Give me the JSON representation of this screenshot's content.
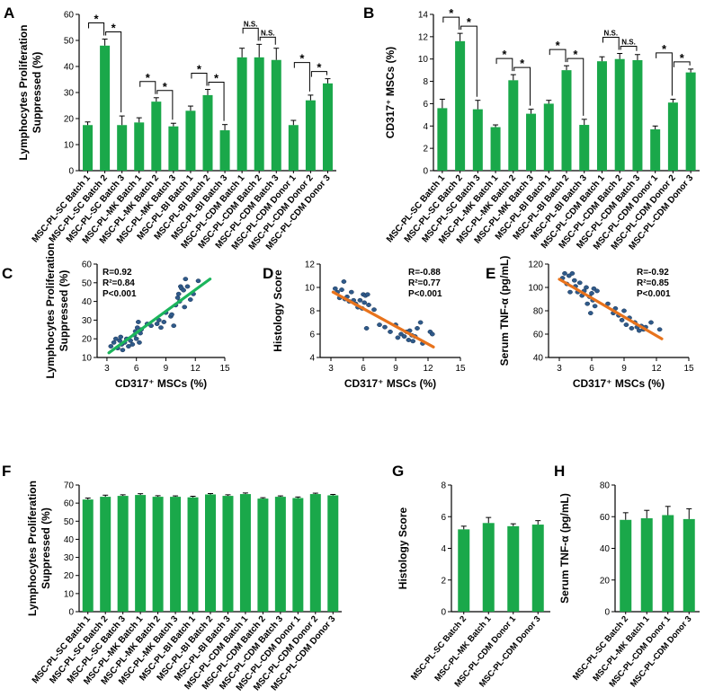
{
  "colors": {
    "bar": "#1aa84a",
    "line_c": "#1bb55c",
    "line_de": "#e8731c",
    "dot": "#2f5a8a",
    "axis": "#000000"
  },
  "chart_data": [
    {
      "panel": "A",
      "type": "bar",
      "ylabel": "Lymphocytes Proliferation Suppressed (%)",
      "ylabel_lines": [
        "Lymphocytes Proliferation",
        "Suppressed (%)"
      ],
      "ylim": [
        0,
        60
      ],
      "yticks": [
        0,
        10,
        20,
        30,
        40,
        50,
        60
      ],
      "categories": [
        "MSC-PL-SC Batch 1",
        "MSC-PL-SC Batch 2",
        "MSC-PL-SC Batch 3",
        "MSC-PL-MK Batch 1",
        "MSC-PL-MK Batch 2",
        "MSC-PL-MK Batch 3",
        "MSC-PL-BI Batch 1",
        "MSC-PL-BI Batch 2",
        "MSC-PL-BI Batch 3",
        "MSC-PL-CDM Batch 1",
        "MSC-PL-CDM Batch 2",
        "MSC-PL-CDM Batch 3",
        "MSC-PL-CDM Donor 1",
        "MSC-PL-CDM Donor 2",
        "MSC-PL-CDM Donor 3"
      ],
      "values": [
        17.5,
        48,
        17.5,
        18.5,
        26.5,
        17,
        23,
        29,
        15.5,
        43.5,
        43.5,
        42.5,
        17.5,
        27,
        33.5
      ],
      "errors": [
        1.2,
        2.5,
        3.5,
        1.8,
        1.5,
        1.2,
        1.8,
        2.2,
        2.2,
        3.5,
        5,
        4.5,
        1.8,
        2,
        1.8
      ],
      "comparisons": [
        {
          "from": 0,
          "to": 1,
          "label": "*"
        },
        {
          "from": 1,
          "to": 2,
          "label": "*"
        },
        {
          "from": 3,
          "to": 4,
          "label": "*"
        },
        {
          "from": 4,
          "to": 5,
          "label": "*"
        },
        {
          "from": 6,
          "to": 7,
          "label": "*"
        },
        {
          "from": 7,
          "to": 8,
          "label": "*"
        },
        {
          "from": 9,
          "to": 10,
          "label": "N.S."
        },
        {
          "from": 10,
          "to": 11,
          "label": "N.S."
        },
        {
          "from": 12,
          "to": 13,
          "label": "*"
        },
        {
          "from": 13,
          "to": 14,
          "label": "*"
        }
      ]
    },
    {
      "panel": "B",
      "type": "bar",
      "ylabel": "CD317⁺ MSCs (%)",
      "ylabel_lines": [
        "CD317⁺ MSCs (%)"
      ],
      "ylim": [
        0,
        14
      ],
      "yticks": [
        0,
        2,
        4,
        6,
        8,
        10,
        12,
        14
      ],
      "categories": [
        "MSC-PL-SC Batch 1",
        "MSC-PL-SC Batch 2",
        "MSC-PL-SC Batch 3",
        "MSC-PL-MK Batch 1",
        "MSC-PL-MK Batch 2",
        "MSC-PL-MK Batch 3",
        "MSC-PL-BI Batch 1",
        "MSC-PL-BI Batch 2",
        "MSC-PL-BI Batch 3",
        "MSC-PL-CDM Batch 1",
        "MSC-PL-CDM Batch 2",
        "MSC-PL-CDM Batch 3",
        "MSC-PL-CDM Donor 1",
        "MSC-PL-CDM Donor 2",
        "MSC-PL-CDM Donor 3"
      ],
      "values": [
        5.6,
        11.6,
        5.5,
        3.9,
        8.1,
        5.1,
        6.0,
        9.0,
        4.1,
        9.8,
        10.0,
        9.9,
        3.7,
        6.1,
        8.8
      ],
      "errors": [
        0.8,
        0.7,
        0.8,
        0.2,
        0.5,
        0.4,
        0.3,
        0.4,
        0.5,
        0.4,
        0.5,
        0.5,
        0.3,
        0.3,
        0.3
      ],
      "comparisons": [
        {
          "from": 0,
          "to": 1,
          "label": "*"
        },
        {
          "from": 1,
          "to": 2,
          "label": "*"
        },
        {
          "from": 3,
          "to": 4,
          "label": "*"
        },
        {
          "from": 4,
          "to": 5,
          "label": "*"
        },
        {
          "from": 6,
          "to": 7,
          "label": "*"
        },
        {
          "from": 7,
          "to": 8,
          "label": "*"
        },
        {
          "from": 9,
          "to": 10,
          "label": "N.S."
        },
        {
          "from": 10,
          "to": 11,
          "label": "N.S."
        },
        {
          "from": 12,
          "to": 13,
          "label": "*"
        },
        {
          "from": 13,
          "to": 14,
          "label": "*"
        }
      ]
    },
    {
      "panel": "C",
      "type": "scatter",
      "xlabel": "CD317⁺ MSCs (%)",
      "ylabel": "Lymphocytes Proliferation Suppressed (%)",
      "ylabel_lines": [
        "Lymphocytes Proliferation",
        "Suppressed (%)"
      ],
      "xlim": [
        2,
        15
      ],
      "xticks": [
        3,
        6,
        9,
        12,
        15
      ],
      "ylim": [
        10,
        60
      ],
      "yticks": [
        10,
        20,
        30,
        40,
        50,
        60
      ],
      "stats": [
        "R=0.92",
        "R²=0.84",
        "P<0.001"
      ],
      "fit": {
        "x": [
          3.2,
          13.5
        ],
        "y": [
          12.5,
          52
        ]
      },
      "points": [
        [
          3.4,
          16
        ],
        [
          3.7,
          18
        ],
        [
          3.9,
          20
        ],
        [
          4.1,
          15
        ],
        [
          4.3,
          19
        ],
        [
          4.4,
          21
        ],
        [
          4.5,
          17
        ],
        [
          4.6,
          14
        ],
        [
          4.8,
          18
        ],
        [
          5.0,
          20
        ],
        [
          5.2,
          16
        ],
        [
          5.4,
          19
        ],
        [
          5.6,
          17
        ],
        [
          5.8,
          22
        ],
        [
          5.9,
          24
        ],
        [
          6.0,
          20
        ],
        [
          6.1,
          26
        ],
        [
          6.2,
          29
        ],
        [
          6.3,
          18
        ],
        [
          6.4,
          23
        ],
        [
          6.5,
          25
        ],
        [
          7.5,
          27
        ],
        [
          8.1,
          28
        ],
        [
          8.3,
          30
        ],
        [
          8.5,
          26
        ],
        [
          9.0,
          34
        ],
        [
          9.5,
          32
        ],
        [
          9.8,
          27
        ],
        [
          10.0,
          38
        ],
        [
          10.2,
          42
        ],
        [
          10.3,
          44
        ],
        [
          10.4,
          40
        ],
        [
          10.5,
          48
        ],
        [
          10.6,
          47
        ],
        [
          10.8,
          46
        ],
        [
          11.0,
          52
        ],
        [
          11.2,
          48
        ],
        [
          11.5,
          41
        ],
        [
          11.8,
          44
        ],
        [
          12.3,
          51
        ],
        [
          9.6,
          33
        ],
        [
          10.9,
          37
        ],
        [
          7.1,
          28
        ],
        [
          8.8,
          29
        ]
      ]
    },
    {
      "panel": "D",
      "type": "scatter",
      "xlabel": "CD317⁺ MSCs (%)",
      "ylabel": "Histology Score",
      "xlim": [
        2,
        15
      ],
      "xticks": [
        3,
        6,
        9,
        12,
        15
      ],
      "ylim": [
        4,
        12
      ],
      "yticks": [
        4,
        6,
        8,
        10,
        12
      ],
      "stats": [
        "R=-0.88",
        "R²=0.77",
        "P<0.001"
      ],
      "fit": {
        "x": [
          3.2,
          12.5
        ],
        "y": [
          9.6,
          4.9
        ]
      },
      "points": [
        [
          3.4,
          9.9
        ],
        [
          3.6,
          9.6
        ],
        [
          3.8,
          9.1
        ],
        [
          4.0,
          9.8
        ],
        [
          4.2,
          10.5
        ],
        [
          4.3,
          9.0
        ],
        [
          4.5,
          9.2
        ],
        [
          4.7,
          8.8
        ],
        [
          4.9,
          9.6
        ],
        [
          5.1,
          8.9
        ],
        [
          5.3,
          8.6
        ],
        [
          5.5,
          8.3
        ],
        [
          5.7,
          8.9
        ],
        [
          5.9,
          8.2
        ],
        [
          6.0,
          9.4
        ],
        [
          6.1,
          8.7
        ],
        [
          6.2,
          9.3
        ],
        [
          6.3,
          6.5
        ],
        [
          6.4,
          9.4
        ],
        [
          6.5,
          8.5
        ],
        [
          7.0,
          8.1
        ],
        [
          7.5,
          6.8
        ],
        [
          8.0,
          6.6
        ],
        [
          8.5,
          6.2
        ],
        [
          9.0,
          6.8
        ],
        [
          9.2,
          5.7
        ],
        [
          9.5,
          6.0
        ],
        [
          9.8,
          5.8
        ],
        [
          10.0,
          6.2
        ],
        [
          10.2,
          5.5
        ],
        [
          10.3,
          6.3
        ],
        [
          10.5,
          5.9
        ],
        [
          10.6,
          5.4
        ],
        [
          10.8,
          5.8
        ],
        [
          11.0,
          6.5
        ],
        [
          11.3,
          7.0
        ],
        [
          11.5,
          5.2
        ],
        [
          12.2,
          6.2
        ],
        [
          12.4,
          6.0
        ]
      ]
    },
    {
      "panel": "E",
      "type": "scatter",
      "xlabel": "CD317⁺ MSCs (%)",
      "ylabel": "Serum TNF-α (pg/mL)",
      "xlim": [
        2,
        15
      ],
      "xticks": [
        3,
        6,
        9,
        12,
        15
      ],
      "ylim": [
        40,
        120
      ],
      "yticks": [
        40,
        60,
        80,
        100,
        120
      ],
      "stats": [
        "R=-0.92",
        "R²=0.85",
        "P<0.001"
      ],
      "fit": {
        "x": [
          3.0,
          12.5
        ],
        "y": [
          107,
          56
        ]
      },
      "points": [
        [
          3.3,
          108
        ],
        [
          3.5,
          112
        ],
        [
          3.7,
          103
        ],
        [
          3.9,
          110
        ],
        [
          4.0,
          96
        ],
        [
          4.2,
          112
        ],
        [
          4.4,
          106
        ],
        [
          4.5,
          101
        ],
        [
          4.7,
          96
        ],
        [
          4.9,
          104
        ],
        [
          5.1,
          93
        ],
        [
          5.3,
          97
        ],
        [
          5.5,
          100
        ],
        [
          5.6,
          86
        ],
        [
          5.8,
          92
        ],
        [
          5.9,
          78
        ],
        [
          6.0,
          95
        ],
        [
          6.1,
          89
        ],
        [
          6.2,
          99
        ],
        [
          6.3,
          84
        ],
        [
          6.5,
          97
        ],
        [
          7.5,
          86
        ],
        [
          8.0,
          78
        ],
        [
          8.2,
          82
        ],
        [
          8.5,
          76
        ],
        [
          8.8,
          72
        ],
        [
          9.0,
          80
        ],
        [
          9.2,
          68
        ],
        [
          9.5,
          74
        ],
        [
          9.7,
          65
        ],
        [
          10.0,
          70
        ],
        [
          10.2,
          66
        ],
        [
          10.4,
          63
        ],
        [
          10.6,
          67
        ],
        [
          10.8,
          64
        ],
        [
          11.0,
          66
        ],
        [
          11.5,
          70
        ],
        [
          12.3,
          64
        ]
      ]
    },
    {
      "panel": "F",
      "type": "bar",
      "ylabel": "Lymphocytes Proliferation Suppressed (%)",
      "ylabel_lines": [
        "Lymphocytes Proliferation",
        "Suppressed (%)"
      ],
      "ylim": [
        0,
        70
      ],
      "yticks": [
        0,
        10,
        20,
        30,
        40,
        50,
        60,
        70
      ],
      "categories": [
        "MSC-PL-SC Batch 1",
        "MSC-PL-SC Batch 2",
        "MSC-PL-SC Batch 3",
        "MSC-PL-MK Batch 1",
        "MSC-PL-MK Batch 2",
        "MSC-PL-MK Batch 3",
        "MSC-PL-BI Batch 1",
        "MSC-PL-BI Batch 2",
        "MSC-PL-BI Batch 3",
        "MSC-PL-CDM Batch 1",
        "MSC-PL-CDM Batch 2",
        "MSC-PL-CDM Batch 3",
        "MSC-PL-CDM Donor 1",
        "MSC-PL-CDM Donor 2",
        "MSC-PL-CDM Donor 3"
      ],
      "values": [
        62,
        63.5,
        64,
        64.5,
        63.5,
        63.5,
        63.2,
        64.8,
        64,
        65,
        62.5,
        63.5,
        62.8,
        65,
        64.3
      ],
      "errors": [
        0.8,
        0.9,
        0.6,
        0.7,
        0.6,
        0.5,
        0.6,
        0.5,
        0.6,
        0.6,
        0.5,
        0.5,
        0.6,
        0.5,
        0.5
      ],
      "comparisons": []
    },
    {
      "panel": "G",
      "type": "bar",
      "ylabel": "Histology Score",
      "ylabel_lines": [
        "Histology Score"
      ],
      "ylim": [
        0,
        8
      ],
      "yticks": [
        0,
        2,
        4,
        6,
        8
      ],
      "categories": [
        "MSC-PL-SC Batch 2",
        "MSC-PL-MK Batch 1",
        "MSC-PL-CDM Donor 1",
        "MSC-PL-CDM Donor 3"
      ],
      "values": [
        5.2,
        5.6,
        5.4,
        5.5
      ],
      "errors": [
        0.2,
        0.35,
        0.15,
        0.25
      ],
      "comparisons": []
    },
    {
      "panel": "H",
      "type": "bar",
      "ylabel": "Serum TNF-α (pg/mL)",
      "ylabel_lines": [
        "Serum TNF-α (pg/mL)"
      ],
      "ylim": [
        0,
        80
      ],
      "yticks": [
        0,
        20,
        40,
        60,
        80
      ],
      "categories": [
        "MSC-PL-SC Batch 2",
        "MSC-PL-MK Batch 1",
        "MSC-PL-CDM Donor 1",
        "MSC-PL-CDM Donor 3"
      ],
      "values": [
        58,
        59,
        61,
        58.5
      ],
      "errors": [
        4.5,
        5,
        5.5,
        6.5
      ],
      "comparisons": []
    }
  ]
}
